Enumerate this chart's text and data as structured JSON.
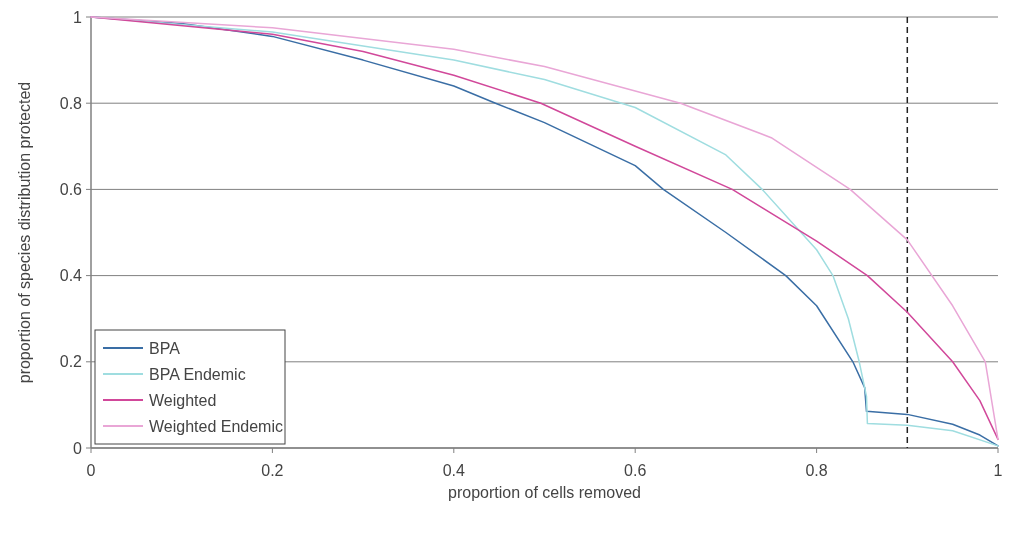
{
  "chart_data": {
    "type": "line",
    "xlabel": "proportion of cells removed",
    "ylabel": "proportion of species distribution protected",
    "xlim": [
      0,
      1
    ],
    "ylim": [
      0,
      1
    ],
    "xticks": [
      0,
      0.2,
      0.4,
      0.6,
      0.8,
      1
    ],
    "yticks": [
      0,
      0.2,
      0.4,
      0.6,
      0.8,
      1
    ],
    "grid": "y",
    "legend": "bottom left",
    "line_style": "solid",
    "marker": "none",
    "ref_lines": [
      {
        "axis": "x",
        "value": 0.9,
        "color": "#222222",
        "line_style": "dashed"
      }
    ],
    "series": [
      {
        "name": "BPA",
        "color": "#3a6ea5",
        "x": [
          0,
          0.1,
          0.2,
          0.3,
          0.4,
          0.446,
          0.5,
          0.6,
          0.631,
          0.7,
          0.766,
          0.8,
          0.84,
          0.853,
          0.855,
          0.9,
          0.95,
          0.98,
          1
        ],
        "values": [
          1,
          0.985,
          0.955,
          0.9,
          0.84,
          0.8,
          0.755,
          0.655,
          0.6,
          0.5,
          0.4,
          0.33,
          0.2,
          0.14,
          0.085,
          0.078,
          0.055,
          0.03,
          0.005
        ]
      },
      {
        "name": "BPA Endemic",
        "color": "#9fdde0",
        "x": [
          0,
          0.2,
          0.4,
          0.5,
          0.6,
          0.7,
          0.74,
          0.8,
          0.818,
          0.835,
          0.847,
          0.855,
          0.856,
          0.9,
          0.95,
          1
        ],
        "values": [
          1,
          0.965,
          0.9,
          0.855,
          0.79,
          0.68,
          0.6,
          0.46,
          0.4,
          0.3,
          0.2,
          0.12,
          0.057,
          0.053,
          0.04,
          0.005
        ]
      },
      {
        "name": "Weighted",
        "color": "#d1489a",
        "x": [
          0,
          0.2,
          0.3,
          0.4,
          0.496,
          0.6,
          0.707,
          0.8,
          0.856,
          0.9,
          0.95,
          0.98,
          1
        ],
        "values": [
          1,
          0.96,
          0.92,
          0.865,
          0.8,
          0.7,
          0.6,
          0.48,
          0.4,
          0.315,
          0.2,
          0.11,
          0.02
        ]
      },
      {
        "name": "Weighted Endemic",
        "color": "#e9a6d6",
        "x": [
          0,
          0.2,
          0.4,
          0.5,
          0.65,
          0.75,
          0.837,
          0.9,
          0.95,
          0.986,
          1
        ],
        "values": [
          1,
          0.975,
          0.925,
          0.885,
          0.8,
          0.72,
          0.6,
          0.483,
          0.33,
          0.2,
          0.02
        ]
      }
    ]
  }
}
